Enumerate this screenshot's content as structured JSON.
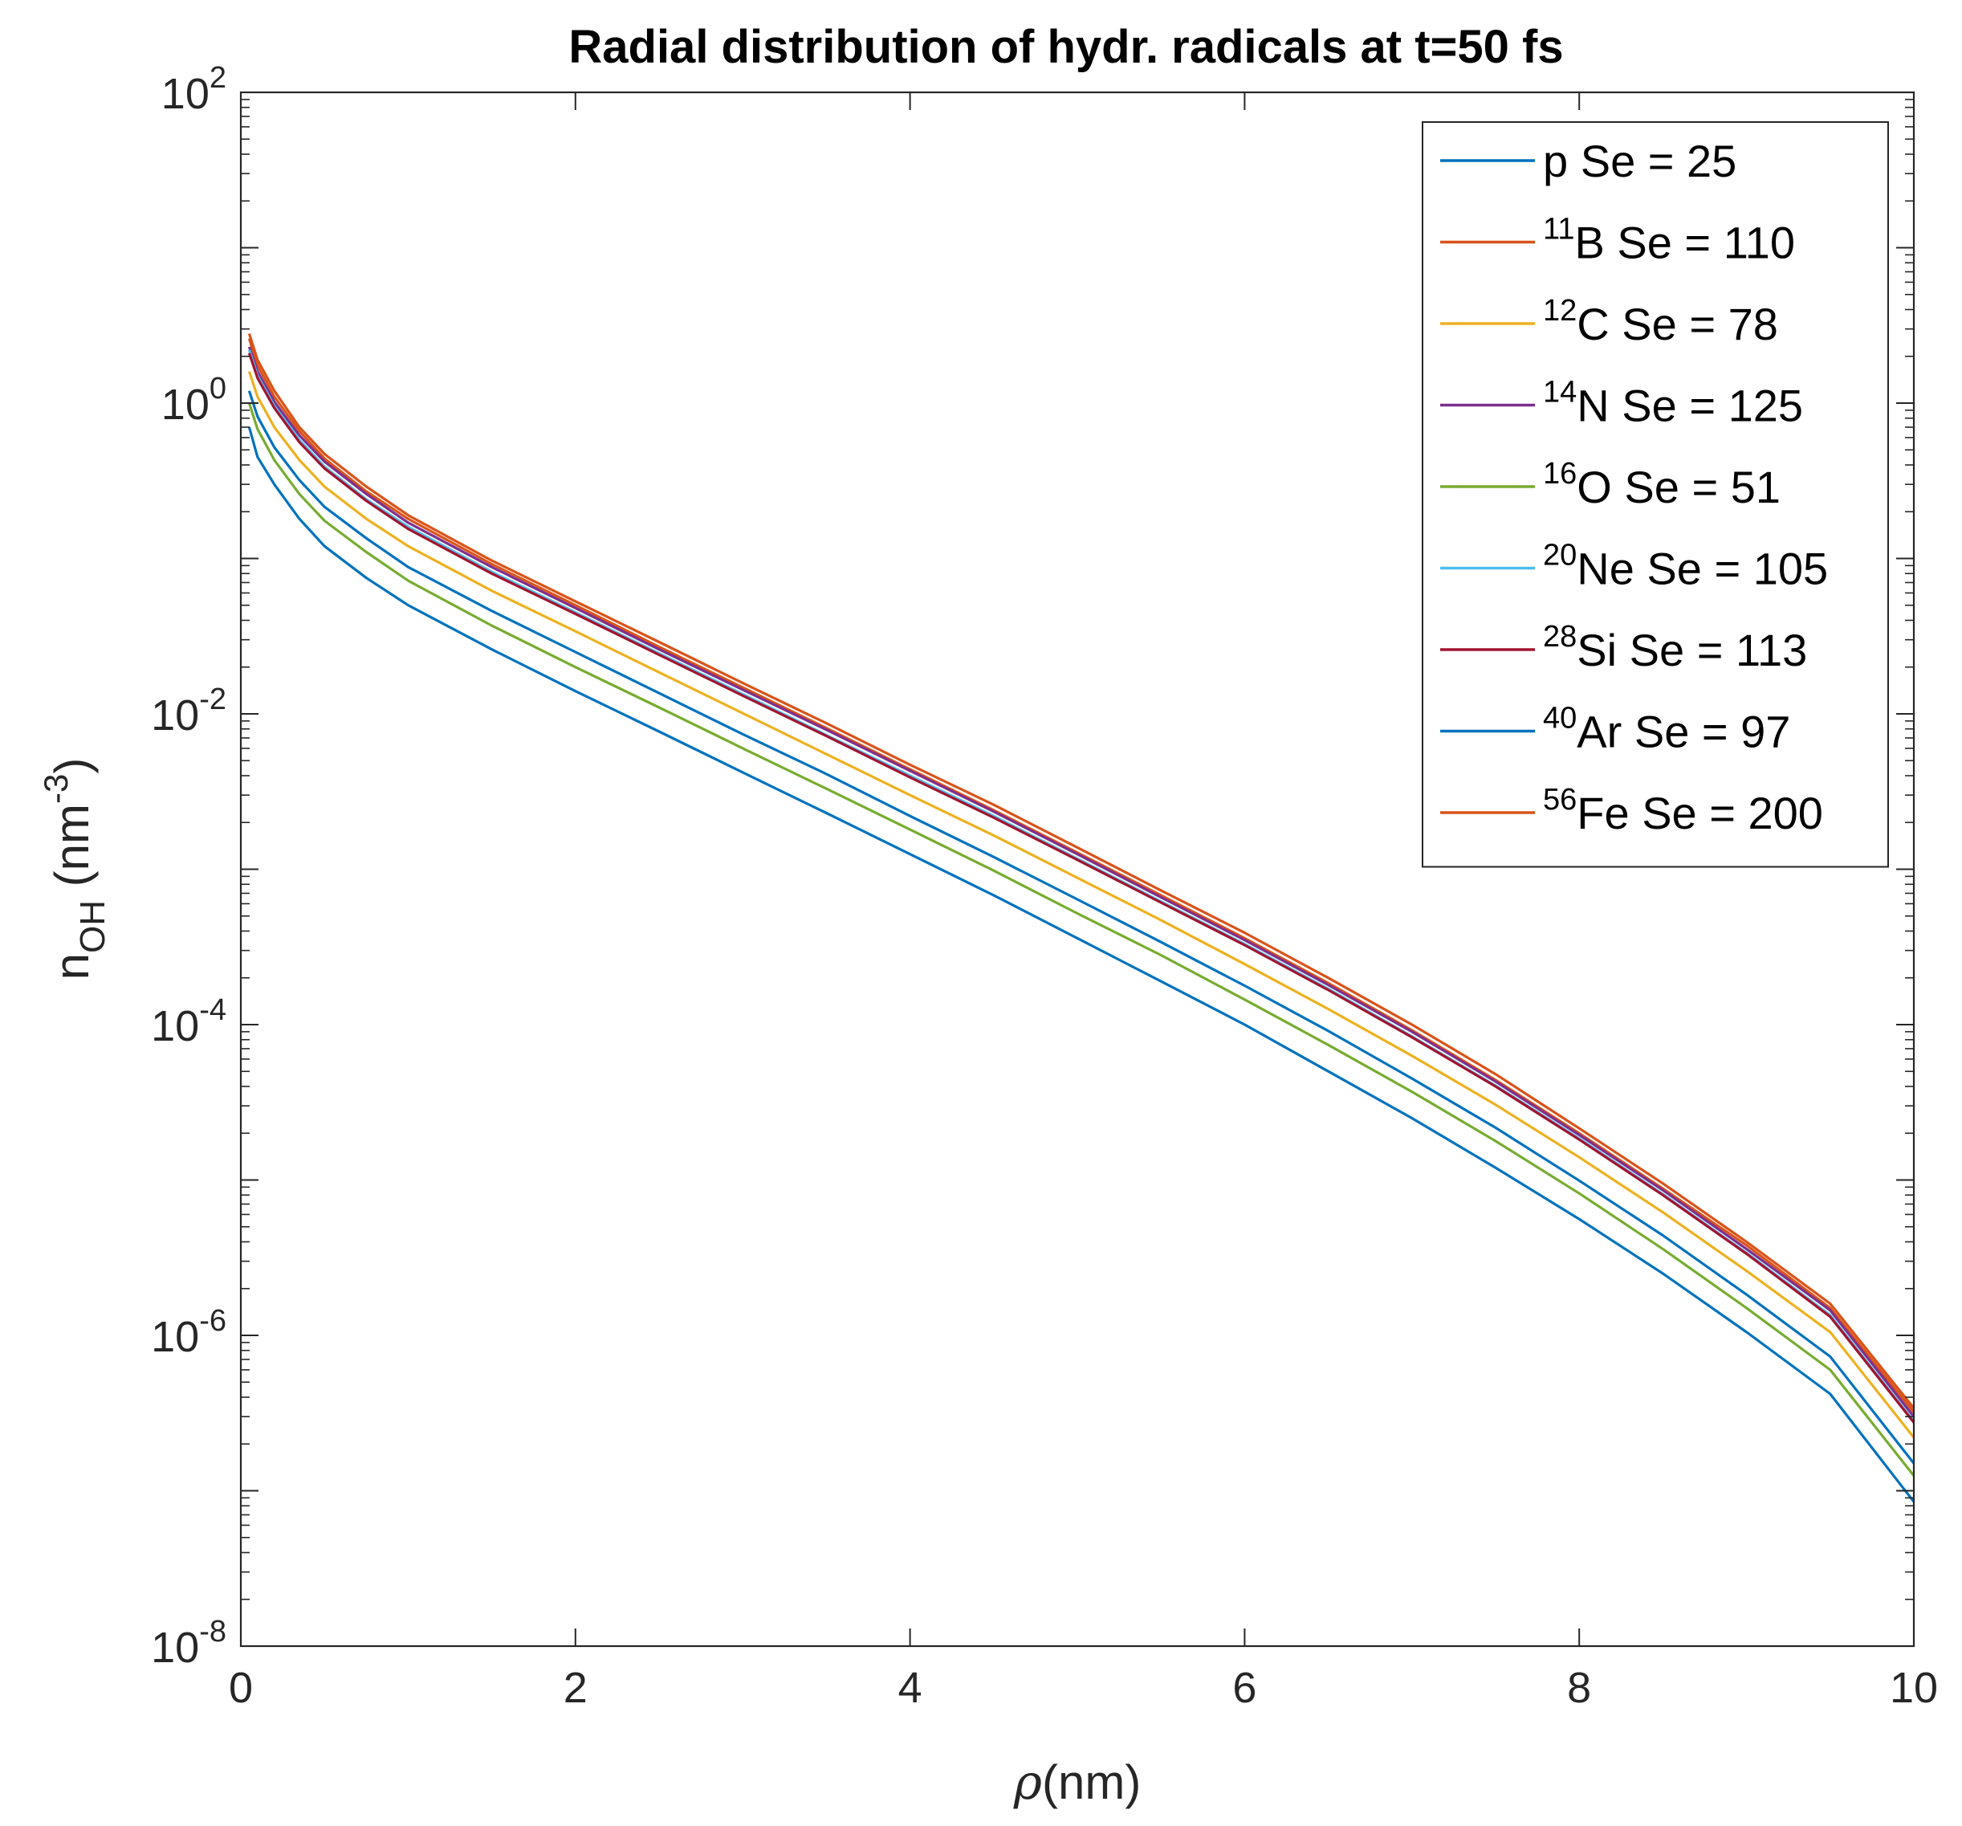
{
  "chart_data": {
    "type": "line",
    "title": "Radial distribution of hydr. radicals at t=50 fs",
    "xlabel": {
      "symbol": "ρ",
      "unit": "(nm)"
    },
    "ylabel": {
      "base": "n",
      "subscript": "OH",
      "unit_prefix": "(nm",
      "unit_superscript": "-3",
      "unit_suffix": ")"
    },
    "x_scale": "linear",
    "y_scale": "log",
    "xlim": [
      0,
      10
    ],
    "ylim": [
      1e-08,
      100
    ],
    "x_ticks": [
      0,
      2,
      4,
      6,
      8,
      10
    ],
    "x_tick_labels": [
      "0",
      "2",
      "4",
      "6",
      "8",
      "10"
    ],
    "y_ticks": [
      1e-08,
      1e-06,
      0.0001,
      0.01,
      1,
      100
    ],
    "y_tick_labels": [
      {
        "base": "10",
        "exp": "-8"
      },
      {
        "base": "10",
        "exp": "-6"
      },
      {
        "base": "10",
        "exp": "-4"
      },
      {
        "base": "10",
        "exp": "-2"
      },
      {
        "base": "10",
        "exp": "0"
      },
      {
        "base": "10",
        "exp": "2"
      }
    ],
    "grid": false,
    "legend_position": "top-right",
    "x": [
      0.05,
      0.1,
      0.2,
      0.35,
      0.5,
      0.75,
      1,
      1.5,
      2,
      2.5,
      3,
      3.5,
      4,
      4.5,
      5,
      5.5,
      6,
      6.5,
      7,
      7.5,
      8,
      8.5,
      9,
      9.5,
      10
    ],
    "series": [
      {
        "mass": "",
        "ion": "p",
        "se_text": " Se = 25",
        "Se": 25,
        "color": "#0072BD",
        "values": [
          0.7,
          0.45,
          0.3,
          0.18,
          0.12,
          0.075,
          0.05,
          0.026,
          0.014,
          0.0077,
          0.0042,
          0.0023,
          0.00125,
          0.00068,
          0.00036,
          0.00019,
          0.0001,
          5e-05,
          2.5e-05,
          1.2e-05,
          5.6e-06,
          2.5e-06,
          1.05e-06,
          4.2e-07,
          8.5e-08
        ]
      },
      {
        "mass": "11",
        "ion": "B",
        "se_text": " Se = 110",
        "Se": 110,
        "color": "#D95319",
        "values": [
          2.6,
          1.75,
          1.1,
          0.66,
          0.44,
          0.27,
          0.18,
          0.092,
          0.05,
          0.027,
          0.0148,
          0.0081,
          0.0044,
          0.0024,
          0.00128,
          0.00068,
          0.00036,
          0.000185,
          9.2e-05,
          4.4e-05,
          2e-05,
          8.8e-06,
          3.8e-06,
          1.5e-06,
          3.2e-07
        ]
      },
      {
        "mass": "12",
        "ion": "C",
        "se_text": " Se = 78",
        "Se": 78,
        "color": "#EDB120",
        "values": [
          1.6,
          1.1,
          0.7,
          0.43,
          0.29,
          0.18,
          0.12,
          0.062,
          0.034,
          0.0185,
          0.0101,
          0.0055,
          0.003,
          0.00165,
          0.00088,
          0.00047,
          0.000245,
          0.000126,
          6.3e-05,
          3.05e-05,
          1.4e-05,
          6.2e-06,
          2.6e-06,
          1.05e-06,
          2.2e-07
        ]
      },
      {
        "mass": "14",
        "ion": "N",
        "se_text": " Se = 125",
        "Se": 125,
        "color": "#7E2F8E",
        "values": [
          2.3,
          1.6,
          1.02,
          0.62,
          0.42,
          0.26,
          0.17,
          0.088,
          0.048,
          0.026,
          0.0143,
          0.0079,
          0.0043,
          0.00235,
          0.00125,
          0.00066,
          0.00035,
          0.00018,
          9e-05,
          4.3e-05,
          1.95e-05,
          8.6e-06,
          3.6e-06,
          1.45e-06,
          3e-07
        ]
      },
      {
        "mass": "16",
        "ion": "O",
        "se_text": " Se = 51",
        "Se": 51,
        "color": "#77AC30",
        "values": [
          1.0,
          0.68,
          0.43,
          0.26,
          0.175,
          0.11,
          0.072,
          0.037,
          0.02,
          0.011,
          0.006,
          0.0033,
          0.0018,
          0.00098,
          0.00052,
          0.00028,
          0.000145,
          7.4e-05,
          3.7e-05,
          1.78e-05,
          8.2e-06,
          3.6e-06,
          1.5e-06,
          6e-07,
          1.25e-07
        ]
      },
      {
        "mass": "20",
        "ion": "Ne",
        "se_text": " Se = 105",
        "Se": 105,
        "color": "#4DBEEE",
        "values": [
          2.2,
          1.5,
          0.96,
          0.58,
          0.39,
          0.24,
          0.16,
          0.082,
          0.045,
          0.0245,
          0.0134,
          0.0073,
          0.004,
          0.0022,
          0.00117,
          0.00062,
          0.00033,
          0.00017,
          8.4e-05,
          4.05e-05,
          1.85e-05,
          8.1e-06,
          3.4e-06,
          1.35e-06,
          2.8e-07
        ]
      },
      {
        "mass": "28",
        "ion": "Si",
        "se_text": " Se = 113",
        "Se": 113,
        "color": "#A2142F",
        "values": [
          2.1,
          1.45,
          0.93,
          0.56,
          0.38,
          0.235,
          0.155,
          0.08,
          0.044,
          0.024,
          0.0131,
          0.0072,
          0.0039,
          0.00215,
          0.00115,
          0.00061,
          0.000325,
          0.000167,
          8.3e-05,
          4e-05,
          1.82e-05,
          8e-06,
          3.35e-06,
          1.32e-06,
          2.75e-07
        ]
      },
      {
        "mass": "40",
        "ion": "Ar",
        "se_text": " Se = 97",
        "Se": 97,
        "color": "#0072BD",
        "values": [
          1.2,
          0.82,
          0.52,
          0.32,
          0.215,
          0.135,
          0.088,
          0.046,
          0.025,
          0.0136,
          0.0074,
          0.0041,
          0.0022,
          0.0012,
          0.00064,
          0.00034,
          0.000178,
          9.1e-05,
          4.5e-05,
          2.17e-05,
          9.9e-06,
          4.4e-06,
          1.83e-06,
          7.3e-07,
          1.5e-07
        ]
      },
      {
        "mass": "56",
        "ion": "Fe",
        "se_text": " Se = 200",
        "Se": 200,
        "color": "#D95319",
        "values": [
          2.8,
          1.9,
          1.2,
          0.7,
          0.47,
          0.29,
          0.19,
          0.097,
          0.053,
          0.029,
          0.0158,
          0.0087,
          0.0047,
          0.0026,
          0.00138,
          0.00073,
          0.00039,
          0.0002,
          0.0001,
          4.8e-05,
          2.15e-05,
          9.5e-06,
          4e-06,
          1.6e-06,
          3.4e-07
        ]
      }
    ]
  }
}
